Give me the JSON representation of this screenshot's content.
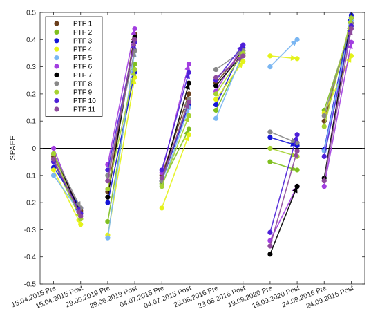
{
  "chart_data": {
    "type": "line",
    "title": "",
    "xlabel": "",
    "ylabel": "SPAEF",
    "ylim": [
      -0.5,
      0.5
    ],
    "yticks": [
      -0.5,
      -0.4,
      -0.3,
      -0.2,
      -0.1,
      0,
      0.1,
      0.2,
      0.3,
      0.4,
      0.5
    ],
    "ytick_labels": [
      "-0.5",
      "-0.4",
      "-0.3",
      "-0.2",
      "-0.1",
      "0",
      "0.1",
      "0.2",
      "0.3",
      "0.4",
      "0.5"
    ],
    "categories": [
      "15.04.2015 Pre",
      "15.04.2015 Post",
      "29.06.2019 Pre",
      "29.06.2019 Post",
      "04.07.2015 Pre",
      "04.07.2015 Post",
      "23.08.2016 Pre",
      "23.08.2016 Post",
      "19.09.2020 Pre",
      "19.09.2020 Post",
      "24.09.2016 Pre",
      "24.09.2016 Post"
    ],
    "reference_line": 0,
    "grid": false,
    "legend_position": "top-left",
    "series": [
      {
        "name": "PTF 1",
        "color": "#6b3f1c",
        "values": [
          -0.03,
          -0.23,
          -0.16,
          0.42,
          -0.1,
          0.2,
          0.24,
          0.36,
          null,
          null,
          0.1,
          0.46
        ]
      },
      {
        "name": "PTF 2",
        "color": "#7fbf1f",
        "values": [
          -0.05,
          -0.26,
          -0.27,
          0.31,
          -0.13,
          0.07,
          0.14,
          0.34,
          -0.05,
          -0.08,
          0.14,
          0.45
        ]
      },
      {
        "name": "PTF 3",
        "color": "#1515d6",
        "values": [
          -0.07,
          -0.22,
          -0.2,
          0.28,
          -0.12,
          0.16,
          0.16,
          0.37,
          0.04,
          0.01,
          -0.005,
          0.49
        ]
      },
      {
        "name": "PTF 4",
        "color": "#e4f21a",
        "values": [
          -0.08,
          -0.28,
          -0.32,
          0.26,
          -0.22,
          0.05,
          0.18,
          0.32,
          0.34,
          0.33,
          0.13,
          0.34
        ]
      },
      {
        "name": "PTF 5",
        "color": "#7ab6f2",
        "values": [
          -0.1,
          -0.24,
          -0.33,
          0.36,
          -0.14,
          0.15,
          0.11,
          0.35,
          0.3,
          0.4,
          -0.01,
          0.47
        ]
      },
      {
        "name": "PTF 6",
        "color": "#a23ee0",
        "values": [
          0.0,
          -0.25,
          -0.06,
          0.44,
          -0.09,
          0.31,
          0.21,
          0.38,
          -0.34,
          -0.14,
          -0.14,
          0.39
        ]
      },
      {
        "name": "PTF 7",
        "color": "#000000",
        "values": [
          -0.02,
          -0.24,
          -0.18,
          0.41,
          -0.12,
          0.24,
          0.23,
          0.35,
          -0.39,
          -0.14,
          -0.11,
          0.48
        ]
      },
      {
        "name": "PTF 8",
        "color": "#888888",
        "values": [
          -0.02,
          -0.22,
          -0.1,
          0.36,
          -0.12,
          0.18,
          0.29,
          0.36,
          0.06,
          0.02,
          0.12,
          0.46
        ]
      },
      {
        "name": "PTF 9",
        "color": "#a6d232",
        "values": [
          -0.02,
          -0.26,
          -0.15,
          0.29,
          -0.14,
          0.12,
          0.2,
          0.35,
          0.0,
          -0.03,
          0.08,
          0.48
        ]
      },
      {
        "name": "PTF 10",
        "color": "#4d20d8",
        "values": [
          -0.05,
          -0.24,
          -0.08,
          0.39,
          -0.08,
          0.28,
          0.25,
          0.38,
          -0.31,
          0.05,
          -0.03,
          0.45
        ]
      },
      {
        "name": "PTF 11",
        "color": "#8e4a9c",
        "values": [
          -0.04,
          -0.25,
          -0.12,
          0.4,
          -0.11,
          0.17,
          0.26,
          0.34,
          -0.36,
          -0.01,
          -0.12,
          0.44
        ]
      }
    ]
  }
}
